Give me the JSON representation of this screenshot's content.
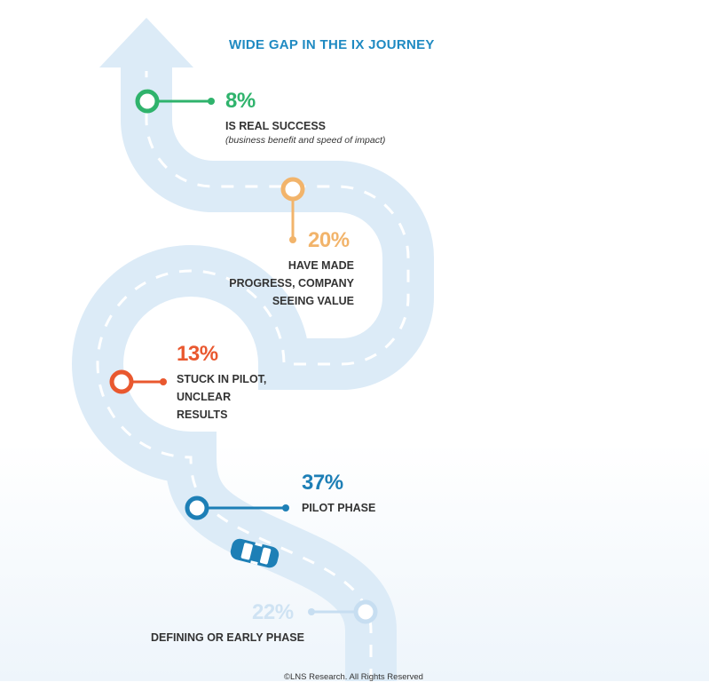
{
  "title": "WIDE GAP IN THE IX JOURNEY",
  "stages": [
    {
      "percent": "8%",
      "label": "IS REAL SUCCESS",
      "note": "(business benefit and speed of impact)",
      "color": "#2fb36c"
    },
    {
      "percent": "20%",
      "label": "HAVE MADE PROGRESS, COMPANY SEEING VALUE",
      "color": "#f2b46b"
    },
    {
      "percent": "13%",
      "label": "STUCK IN PILOT, UNCLEAR RESULTS",
      "color": "#e9582f"
    },
    {
      "percent": "37%",
      "label": "PILOT PHASE",
      "color": "#1d7fb6"
    },
    {
      "percent": "22%",
      "label": "DEFINING OR EARLY PHASE",
      "color": "#cfe3f3"
    }
  ],
  "colors": {
    "road": "#dcebf7",
    "dash": "#ffffff",
    "car": "#1d7fb6"
  },
  "icons": [
    "up-arrow-icon",
    "car-icon"
  ],
  "copyright": "©LNS Research. All Rights Reserved"
}
